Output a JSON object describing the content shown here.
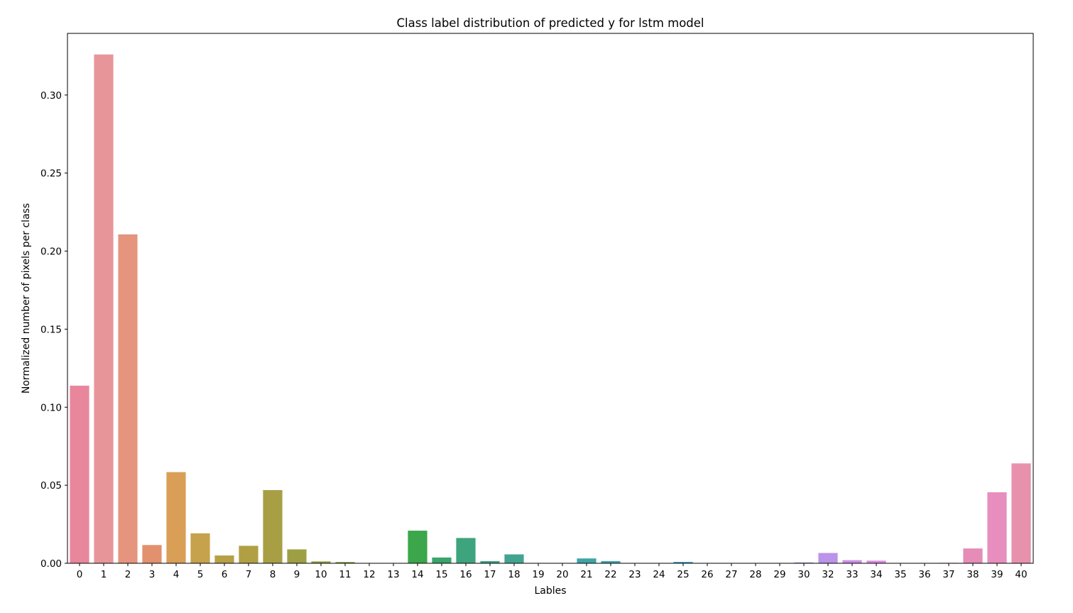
{
  "chart_data": {
    "type": "bar",
    "title": "Class label distribution of predicted y for lstm model",
    "xlabel": "Lables",
    "ylabel": "Normalized number of pixels per class",
    "ylim": [
      0,
      0.3395
    ],
    "yticks": [
      "0.00",
      "0.05",
      "0.10",
      "0.15",
      "0.20",
      "0.25",
      "0.30"
    ],
    "ytick_values": [
      0,
      0.05,
      0.1,
      0.15,
      0.2,
      0.25,
      0.3
    ],
    "grid": false,
    "legend": "none",
    "categories": [
      "0",
      "1",
      "2",
      "3",
      "4",
      "5",
      "6",
      "7",
      "8",
      "9",
      "10",
      "11",
      "12",
      "13",
      "14",
      "15",
      "16",
      "17",
      "18",
      "19",
      "20",
      "21",
      "22",
      "23",
      "24",
      "25",
      "26",
      "27",
      "28",
      "29",
      "30",
      "32",
      "33",
      "34",
      "35",
      "36",
      "37",
      "38",
      "39",
      "40"
    ],
    "values": [
      0.1138,
      0.326,
      0.2107,
      0.0117,
      0.0584,
      0.0192,
      0.005,
      0.0112,
      0.0469,
      0.0089,
      0.0012,
      0.0008,
      0.0002,
      0.0002,
      0.0209,
      0.0037,
      0.0162,
      0.0014,
      0.0057,
      0.0002,
      0.0002,
      0.0031,
      0.0014,
      0.0002,
      0.0002,
      0.0009,
      0.0002,
      0.0002,
      0.0002,
      0.0002,
      0.0005,
      0.0066,
      0.002,
      0.0017,
      0.0002,
      0.0002,
      0.0003,
      0.0095,
      0.0455,
      0.064
    ],
    "colors": [
      "#e8879c",
      "#e8959a",
      "#e5957e",
      "#e3906e",
      "#d99f56",
      "#c6a24d",
      "#b7a146",
      "#b1a043",
      "#a89f45",
      "#9e9f44",
      "#909f3e",
      "#819e3c",
      "#6da23b",
      "#4fac3d",
      "#3ba64a",
      "#3aa56c",
      "#3ea47e",
      "#3ea386",
      "#42a490",
      "#41a499",
      "#42a4a1",
      "#3fa4a8",
      "#40a3b1",
      "#42a2b9",
      "#44a2c2",
      "#47a0cb",
      "#4c9ed7",
      "#5a97e4",
      "#7193e8",
      "#8c8ee9",
      "#a08be8",
      "#bb93ea",
      "#cc8ee8",
      "#dc8be2",
      "#e78ad8",
      "#e78acb",
      "#e88abd",
      "#e58cb7",
      "#e88ebf",
      "#e891ac"
    ]
  }
}
